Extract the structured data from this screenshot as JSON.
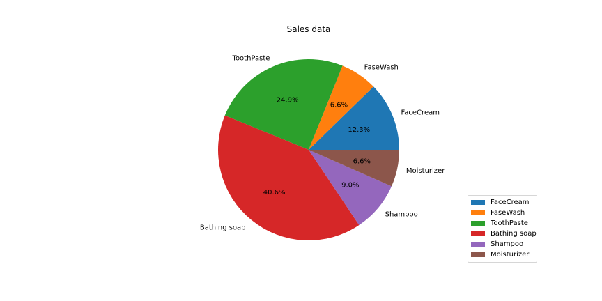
{
  "chart_data": {
    "type": "pie",
    "title": "Sales data",
    "categories": [
      "FaceCream",
      "FaseWash",
      "ToothPaste",
      "Bathing soap",
      "Shampoo",
      "Moisturizer"
    ],
    "values": [
      12.3,
      6.6,
      24.9,
      40.6,
      9.0,
      6.6
    ],
    "value_labels": [
      "12.3%",
      "6.6%",
      "24.9%",
      "40.6%",
      "9.0%",
      "6.6%"
    ],
    "colors": [
      "#1f77b4",
      "#ff7f0e",
      "#2ca02c",
      "#d62728",
      "#9467bd",
      "#8c564b"
    ],
    "start_angle_deg": 0,
    "direction": "counterclockwise",
    "legend": {
      "placement": "lower-right",
      "entries": [
        "FaceCream",
        "FaseWash",
        "ToothPaste",
        "Bathing soap",
        "Shampoo",
        "Moisturizer"
      ]
    }
  }
}
